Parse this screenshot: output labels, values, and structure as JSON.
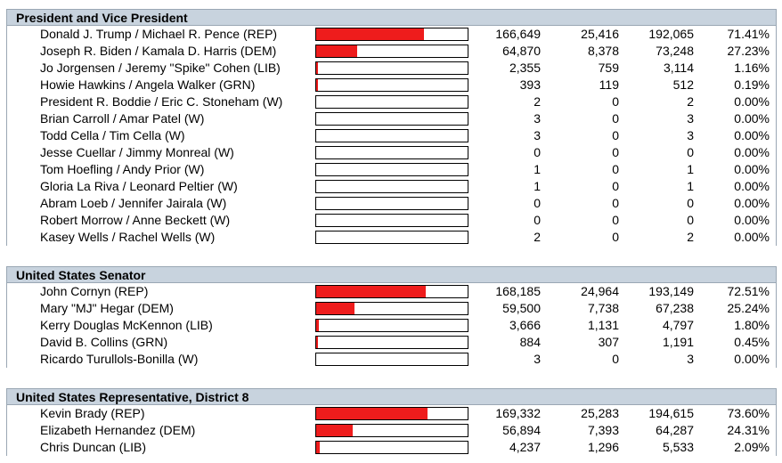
{
  "races": [
    {
      "title": "President and Vice President",
      "candidates": [
        {
          "name": "Donald J. Trump / Michael R. Pence (REP)",
          "v1": "166,649",
          "v2": "25,416",
          "total": "192,065",
          "pct": "71.41%",
          "share": 0.7141
        },
        {
          "name": "Joseph R. Biden / Kamala D. Harris (DEM)",
          "v1": "64,870",
          "v2": "8,378",
          "total": "73,248",
          "pct": "27.23%",
          "share": 0.2723
        },
        {
          "name": "Jo Jorgensen / Jeremy \"Spike\" Cohen (LIB)",
          "v1": "2,355",
          "v2": "759",
          "total": "3,114",
          "pct": "1.16%",
          "share": 0.0116
        },
        {
          "name": "Howie Hawkins / Angela Walker (GRN)",
          "v1": "393",
          "v2": "119",
          "total": "512",
          "pct": "0.19%",
          "share": 0.0019
        },
        {
          "name": "President R. Boddie / Eric C. Stoneham (W)",
          "v1": "2",
          "v2": "0",
          "total": "2",
          "pct": "0.00%",
          "share": 0
        },
        {
          "name": "Brian Carroll / Amar Patel (W)",
          "v1": "3",
          "v2": "0",
          "total": "3",
          "pct": "0.00%",
          "share": 0
        },
        {
          "name": "Todd Cella / Tim Cella (W)",
          "v1": "3",
          "v2": "0",
          "total": "3",
          "pct": "0.00%",
          "share": 0
        },
        {
          "name": "Jesse Cuellar / Jimmy Monreal (W)",
          "v1": "0",
          "v2": "0",
          "total": "0",
          "pct": "0.00%",
          "share": 0
        },
        {
          "name": "Tom Hoefling / Andy Prior (W)",
          "v1": "1",
          "v2": "0",
          "total": "1",
          "pct": "0.00%",
          "share": 0
        },
        {
          "name": "Gloria La Riva / Leonard Peltier (W)",
          "v1": "1",
          "v2": "0",
          "total": "1",
          "pct": "0.00%",
          "share": 0
        },
        {
          "name": "Abram Loeb / Jennifer Jairala (W)",
          "v1": "0",
          "v2": "0",
          "total": "0",
          "pct": "0.00%",
          "share": 0
        },
        {
          "name": "Robert Morrow / Anne Beckett (W)",
          "v1": "0",
          "v2": "0",
          "total": "0",
          "pct": "0.00%",
          "share": 0
        },
        {
          "name": "Kasey Wells / Rachel Wells (W)",
          "v1": "2",
          "v2": "0",
          "total": "2",
          "pct": "0.00%",
          "share": 0
        }
      ]
    },
    {
      "title": "United States Senator",
      "candidates": [
        {
          "name": "John Cornyn (REP)",
          "v1": "168,185",
          "v2": "24,964",
          "total": "193,149",
          "pct": "72.51%",
          "share": 0.7251
        },
        {
          "name": "Mary \"MJ\" Hegar (DEM)",
          "v1": "59,500",
          "v2": "7,738",
          "total": "67,238",
          "pct": "25.24%",
          "share": 0.2524
        },
        {
          "name": "Kerry Douglas McKennon (LIB)",
          "v1": "3,666",
          "v2": "1,131",
          "total": "4,797",
          "pct": "1.80%",
          "share": 0.018
        },
        {
          "name": "David B. Collins (GRN)",
          "v1": "884",
          "v2": "307",
          "total": "1,191",
          "pct": "0.45%",
          "share": 0.0045
        },
        {
          "name": "Ricardo Turullols-Bonilla (W)",
          "v1": "3",
          "v2": "0",
          "total": "3",
          "pct": "0.00%",
          "share": 0
        }
      ]
    },
    {
      "title": "United States Representative, District 8",
      "candidates": [
        {
          "name": "Kevin Brady (REP)",
          "v1": "169,332",
          "v2": "25,283",
          "total": "194,615",
          "pct": "73.60%",
          "share": 0.736
        },
        {
          "name": "Elizabeth Hernandez (DEM)",
          "v1": "56,894",
          "v2": "7,393",
          "total": "64,287",
          "pct": "24.31%",
          "share": 0.2431
        },
        {
          "name": "Chris Duncan (LIB)",
          "v1": "4,237",
          "v2": "1,296",
          "total": "5,533",
          "pct": "2.09%",
          "share": 0.0209
        }
      ]
    }
  ],
  "colors": {
    "bar_fill": "#ee1c1c",
    "header_bg": "#c8d3de"
  }
}
